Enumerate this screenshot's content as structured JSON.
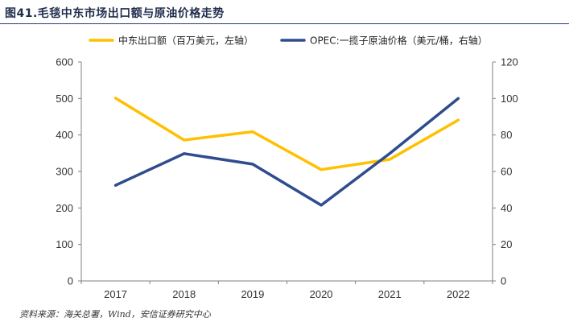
{
  "title": "图41.毛毯中东市场出口额与原油价格走势",
  "source": "资料来源：海关总署，Wind，安信证券研究中心",
  "chart_data": {
    "type": "line",
    "categories": [
      "2017",
      "2018",
      "2019",
      "2020",
      "2021",
      "2022"
    ],
    "series": [
      {
        "name": "中东出口额（百万美元，左轴）",
        "axis": "left",
        "color": "#FFC000",
        "values": [
          501,
          386,
          409,
          305,
          333,
          441
        ]
      },
      {
        "name": "OPEC:一揽子原油价格（美元/桶，右轴）",
        "axis": "right",
        "color": "#2E4C8E",
        "values": [
          52.4,
          69.8,
          64.0,
          41.5,
          69.9,
          100.0
        ]
      }
    ],
    "y_left": {
      "lim": [
        0,
        600
      ],
      "ticks": [
        "0",
        "100",
        "200",
        "300",
        "400",
        "500",
        "600"
      ]
    },
    "y_right": {
      "lim": [
        0,
        120
      ],
      "ticks": [
        "0",
        "20",
        "40",
        "60",
        "80",
        "100",
        "120"
      ]
    },
    "grid": false,
    "legend": "top"
  }
}
